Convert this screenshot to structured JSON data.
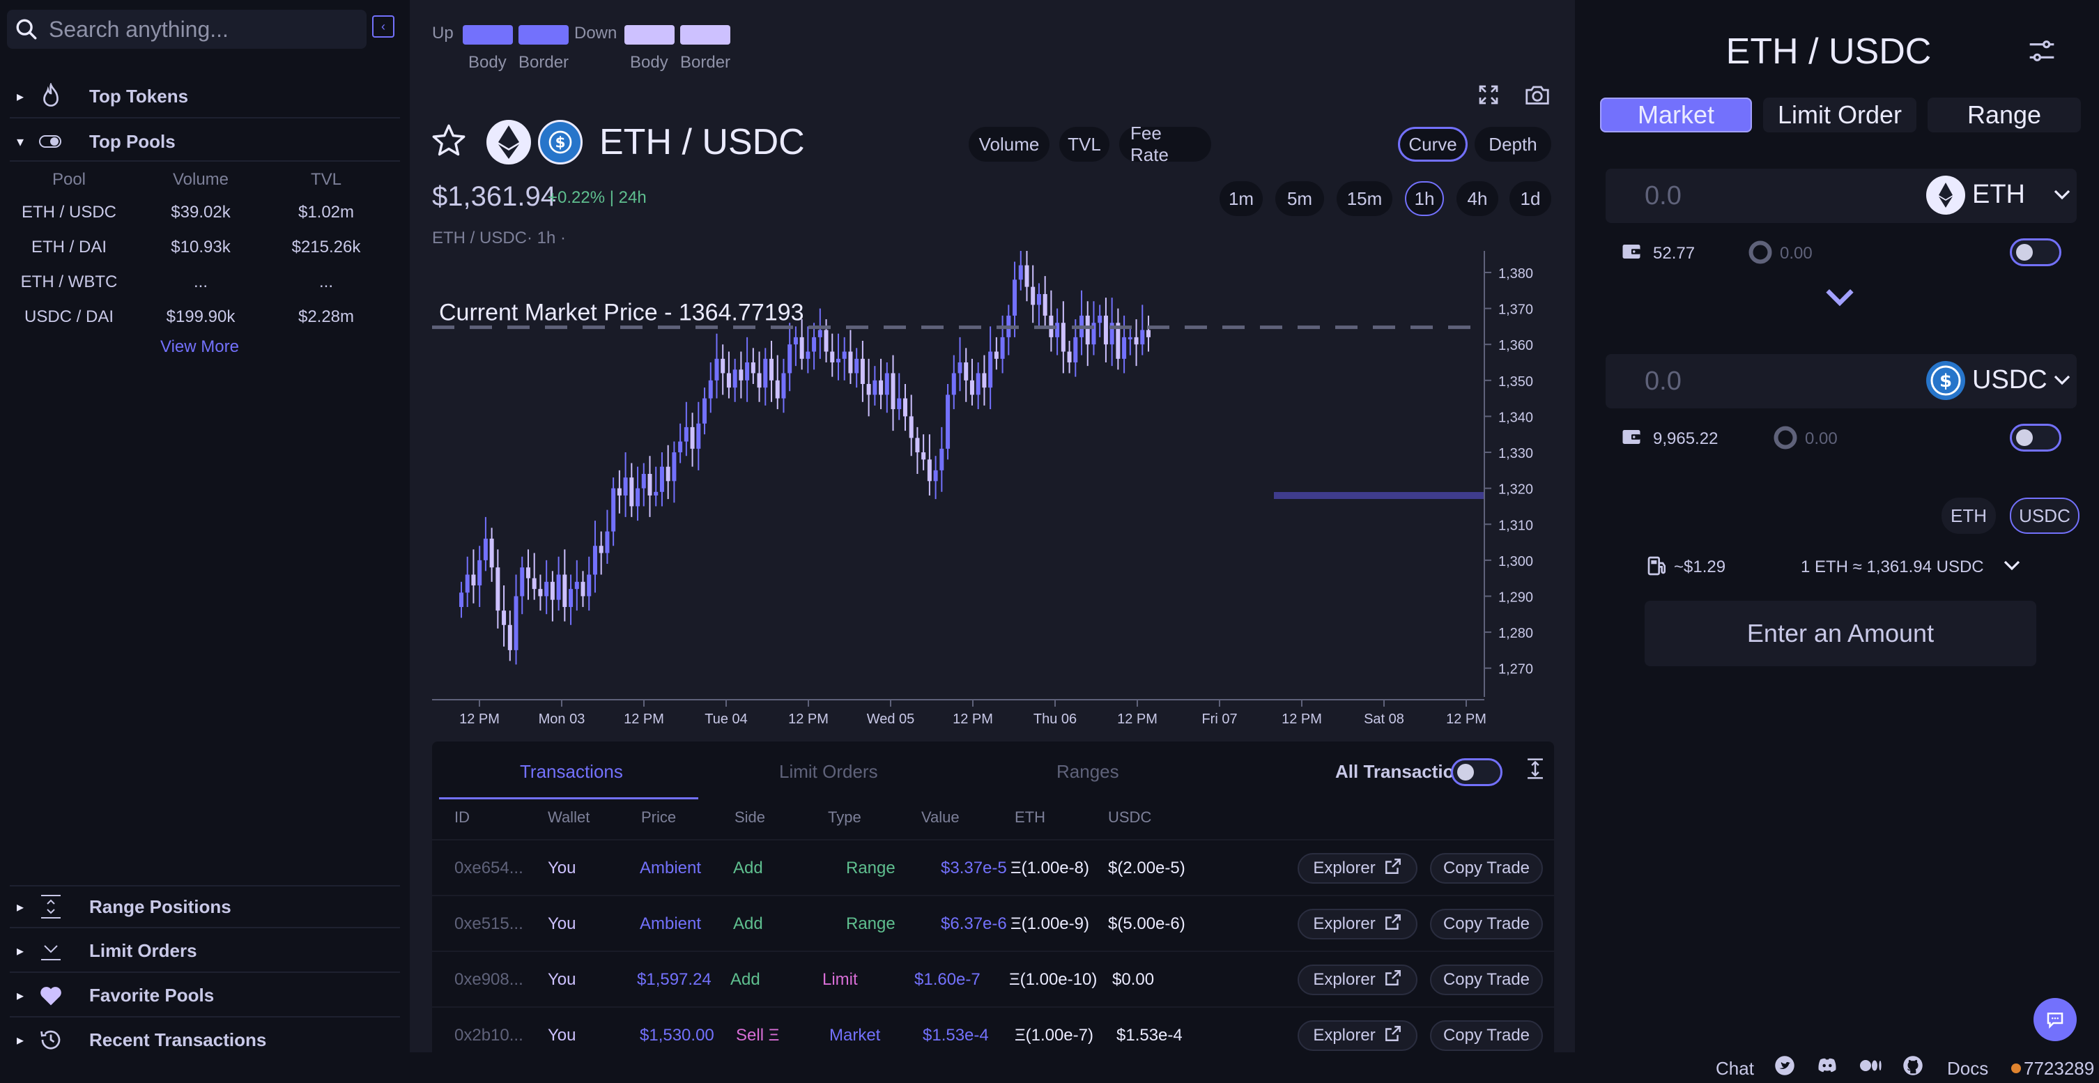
{
  "sidebar": {
    "search_placeholder": "Search anything...",
    "sections": {
      "top_tokens": "Top Tokens",
      "top_pools": "Top Pools",
      "range_positions": "Range Positions",
      "limit_orders": "Limit Orders",
      "favorite_pools": "Favorite Pools",
      "recent_transactions": "Recent Transactions"
    },
    "pools_table": {
      "headers": [
        "Pool",
        "Volume",
        "TVL"
      ],
      "rows": [
        {
          "pool": "ETH / USDC",
          "volume": "$39.02k",
          "tvl": "$1.02m"
        },
        {
          "pool": "ETH / DAI",
          "volume": "$10.93k",
          "tvl": "$215.26k"
        },
        {
          "pool": "ETH / WBTC",
          "volume": "...",
          "tvl": "..."
        },
        {
          "pool": "USDC / DAI",
          "volume": "$199.90k",
          "tvl": "$2.28m"
        }
      ],
      "view_more": "View More"
    }
  },
  "legend": {
    "up": "Up",
    "down": "Down",
    "body": "Body",
    "border": "Border",
    "up_color": "#7371fc",
    "down_color": "#cdc1ff"
  },
  "pair": {
    "title": "ETH / USDC",
    "price": "$1,361.94",
    "change": "+0.22% | 24h",
    "subtitle": "ETH / USDC· 1h ·"
  },
  "chart_toggles": [
    "Volume",
    "TVL",
    "Fee Rate"
  ],
  "chart_views": {
    "curve": "Curve",
    "depth": "Depth"
  },
  "timeframes": [
    "1m",
    "5m",
    "15m",
    "1h",
    "4h",
    "1d"
  ],
  "chart_data": {
    "type": "candlestick",
    "annotation": "Current Market Price - 1364.77193",
    "current_price": 1364.77,
    "ylim": [
      1262,
      1386
    ],
    "y_ticks": [
      1380,
      1370,
      1360,
      1350,
      1340,
      1330,
      1320,
      1310,
      1300,
      1290,
      1280,
      1270
    ],
    "x_ticks": [
      "12 PM",
      "Mon 03",
      "12 PM",
      "Tue 04",
      "12 PM",
      "Wed 05",
      "12 PM",
      "Thu 06",
      "12 PM",
      "Fri 07",
      "12 PM",
      "Sat 08",
      "12 PM"
    ],
    "range_line_price": 1318,
    "close": [
      1291,
      1296,
      1293,
      1300,
      1306,
      1298,
      1286,
      1282,
      1275,
      1290,
      1298,
      1295,
      1292,
      1290,
      1294,
      1289,
      1296,
      1287,
      1292,
      1294,
      1290,
      1296,
      1304,
      1302,
      1308,
      1320,
      1318,
      1323,
      1315,
      1320,
      1324,
      1318,
      1319,
      1326,
      1322,
      1330,
      1333,
      1337,
      1331,
      1338,
      1345,
      1350,
      1356,
      1352,
      1348,
      1353,
      1350,
      1355,
      1352,
      1348,
      1356,
      1350,
      1345,
      1352,
      1360,
      1362,
      1356,
      1358,
      1362,
      1364,
      1358,
      1355,
      1356,
      1358,
      1352,
      1356,
      1349,
      1346,
      1350,
      1346,
      1352,
      1342,
      1345,
      1340,
      1334,
      1330,
      1328,
      1322,
      1325,
      1331,
      1346,
      1352,
      1355,
      1350,
      1346,
      1352,
      1348,
      1358,
      1356,
      1362,
      1368,
      1378,
      1382,
      1376,
      1371,
      1374,
      1368,
      1362,
      1366,
      1358,
      1355,
      1362,
      1368,
      1360,
      1366,
      1368,
      1360,
      1366,
      1356,
      1362,
      1362,
      1360,
      1364,
      1362
    ]
  },
  "tx_panel": {
    "tabs": [
      "Transactions",
      "Limit Orders",
      "Ranges"
    ],
    "all_transactions": "All Transactions",
    "headers": [
      "ID",
      "Wallet",
      "Price",
      "Side",
      "Type",
      "Value",
      "ETH",
      "USDC"
    ],
    "rows": [
      {
        "id": "0xe654...",
        "wallet": "You",
        "price": "Ambient",
        "side": "Add",
        "type": "Range",
        "value": "$3.37e-5",
        "eth": "Ξ(1.00e-8)",
        "usdc": "$(2.00e-5)",
        "side_color": "#5fbf8f",
        "type_color": "#5fbf8f"
      },
      {
        "id": "0xe515...",
        "wallet": "You",
        "price": "Ambient",
        "side": "Add",
        "type": "Range",
        "value": "$6.37e-6",
        "eth": "Ξ(1.00e-9)",
        "usdc": "$(5.00e-6)",
        "side_color": "#5fbf8f",
        "type_color": "#5fbf8f"
      },
      {
        "id": "0xe908...",
        "wallet": "You",
        "price": "$1,597.24",
        "side": "Add",
        "type": "Limit",
        "value": "$1.60e-7",
        "eth": "Ξ(1.00e-10)",
        "usdc": "$0.00",
        "side_color": "#5fbf8f",
        "type_color": "#d86ed6"
      },
      {
        "id": "0x2b10...",
        "wallet": "You",
        "price": "$1,530.00",
        "side": "Sell Ξ",
        "type": "Market",
        "value": "$1.53e-4",
        "eth": "Ξ(1.00e-7)",
        "usdc": "$1.53e-4",
        "side_color": "#d86ed6",
        "type_color": "#7371fc"
      }
    ],
    "explorer": "Explorer",
    "copy_trade": "Copy Trade"
  },
  "trade": {
    "title": "ETH / USDC",
    "tabs": [
      "Market",
      "Limit Order",
      "Range"
    ],
    "token_a": {
      "amount_placeholder": "0.0",
      "symbol": "ETH",
      "wallet_balance": "52.77",
      "exchange_balance": "0.00"
    },
    "token_b": {
      "amount_placeholder": "0.0",
      "symbol": "USDC",
      "wallet_balance": "9,965.22",
      "exchange_balance": "0.00"
    },
    "denom": [
      "ETH",
      "USDC"
    ],
    "gas": "~$1.29",
    "rate": "1 ETH ≈ 1,361.94 USDC",
    "cta": "Enter an Amount"
  },
  "footer": {
    "chat": "Chat",
    "docs": "Docs",
    "block": "7723289"
  }
}
